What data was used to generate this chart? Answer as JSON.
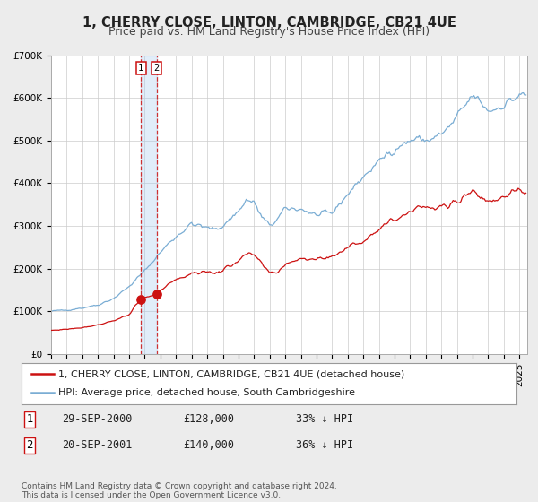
{
  "title": "1, CHERRY CLOSE, LINTON, CAMBRIDGE, CB21 4UE",
  "subtitle": "Price paid vs. HM Land Registry's House Price Index (HPI)",
  "background_color": "#ececec",
  "plot_bg_color": "#ffffff",
  "hpi_color": "#7aadd4",
  "price_color": "#cc1111",
  "ylim": [
    0,
    700000
  ],
  "yticks": [
    0,
    100000,
    200000,
    300000,
    400000,
    500000,
    600000,
    700000
  ],
  "ytick_labels": [
    "£0",
    "£100K",
    "£200K",
    "£300K",
    "£400K",
    "£500K",
    "£600K",
    "£700K"
  ],
  "xlim_start": 1995.0,
  "xlim_end": 2025.5,
  "legend_labels": [
    "1, CHERRY CLOSE, LINTON, CAMBRIDGE, CB21 4UE (detached house)",
    "HPI: Average price, detached house, South Cambridgeshire"
  ],
  "sale1_x": 2000.75,
  "sale1_y": 128000,
  "sale1_label": "1",
  "sale1_date": "29-SEP-2000",
  "sale1_price": "£128,000",
  "sale1_hpi": "33% ↓ HPI",
  "sale2_x": 2001.75,
  "sale2_y": 140000,
  "sale2_label": "2",
  "sale2_date": "20-SEP-2001",
  "sale2_price": "£140,000",
  "sale2_hpi": "36% ↓ HPI",
  "footer": "Contains HM Land Registry data © Crown copyright and database right 2024.\nThis data is licensed under the Open Government Licence v3.0.",
  "title_fontsize": 10.5,
  "subtitle_fontsize": 9,
  "tick_fontsize": 7.5,
  "legend_fontsize": 8,
  "table_fontsize": 8.5,
  "footer_fontsize": 6.5
}
